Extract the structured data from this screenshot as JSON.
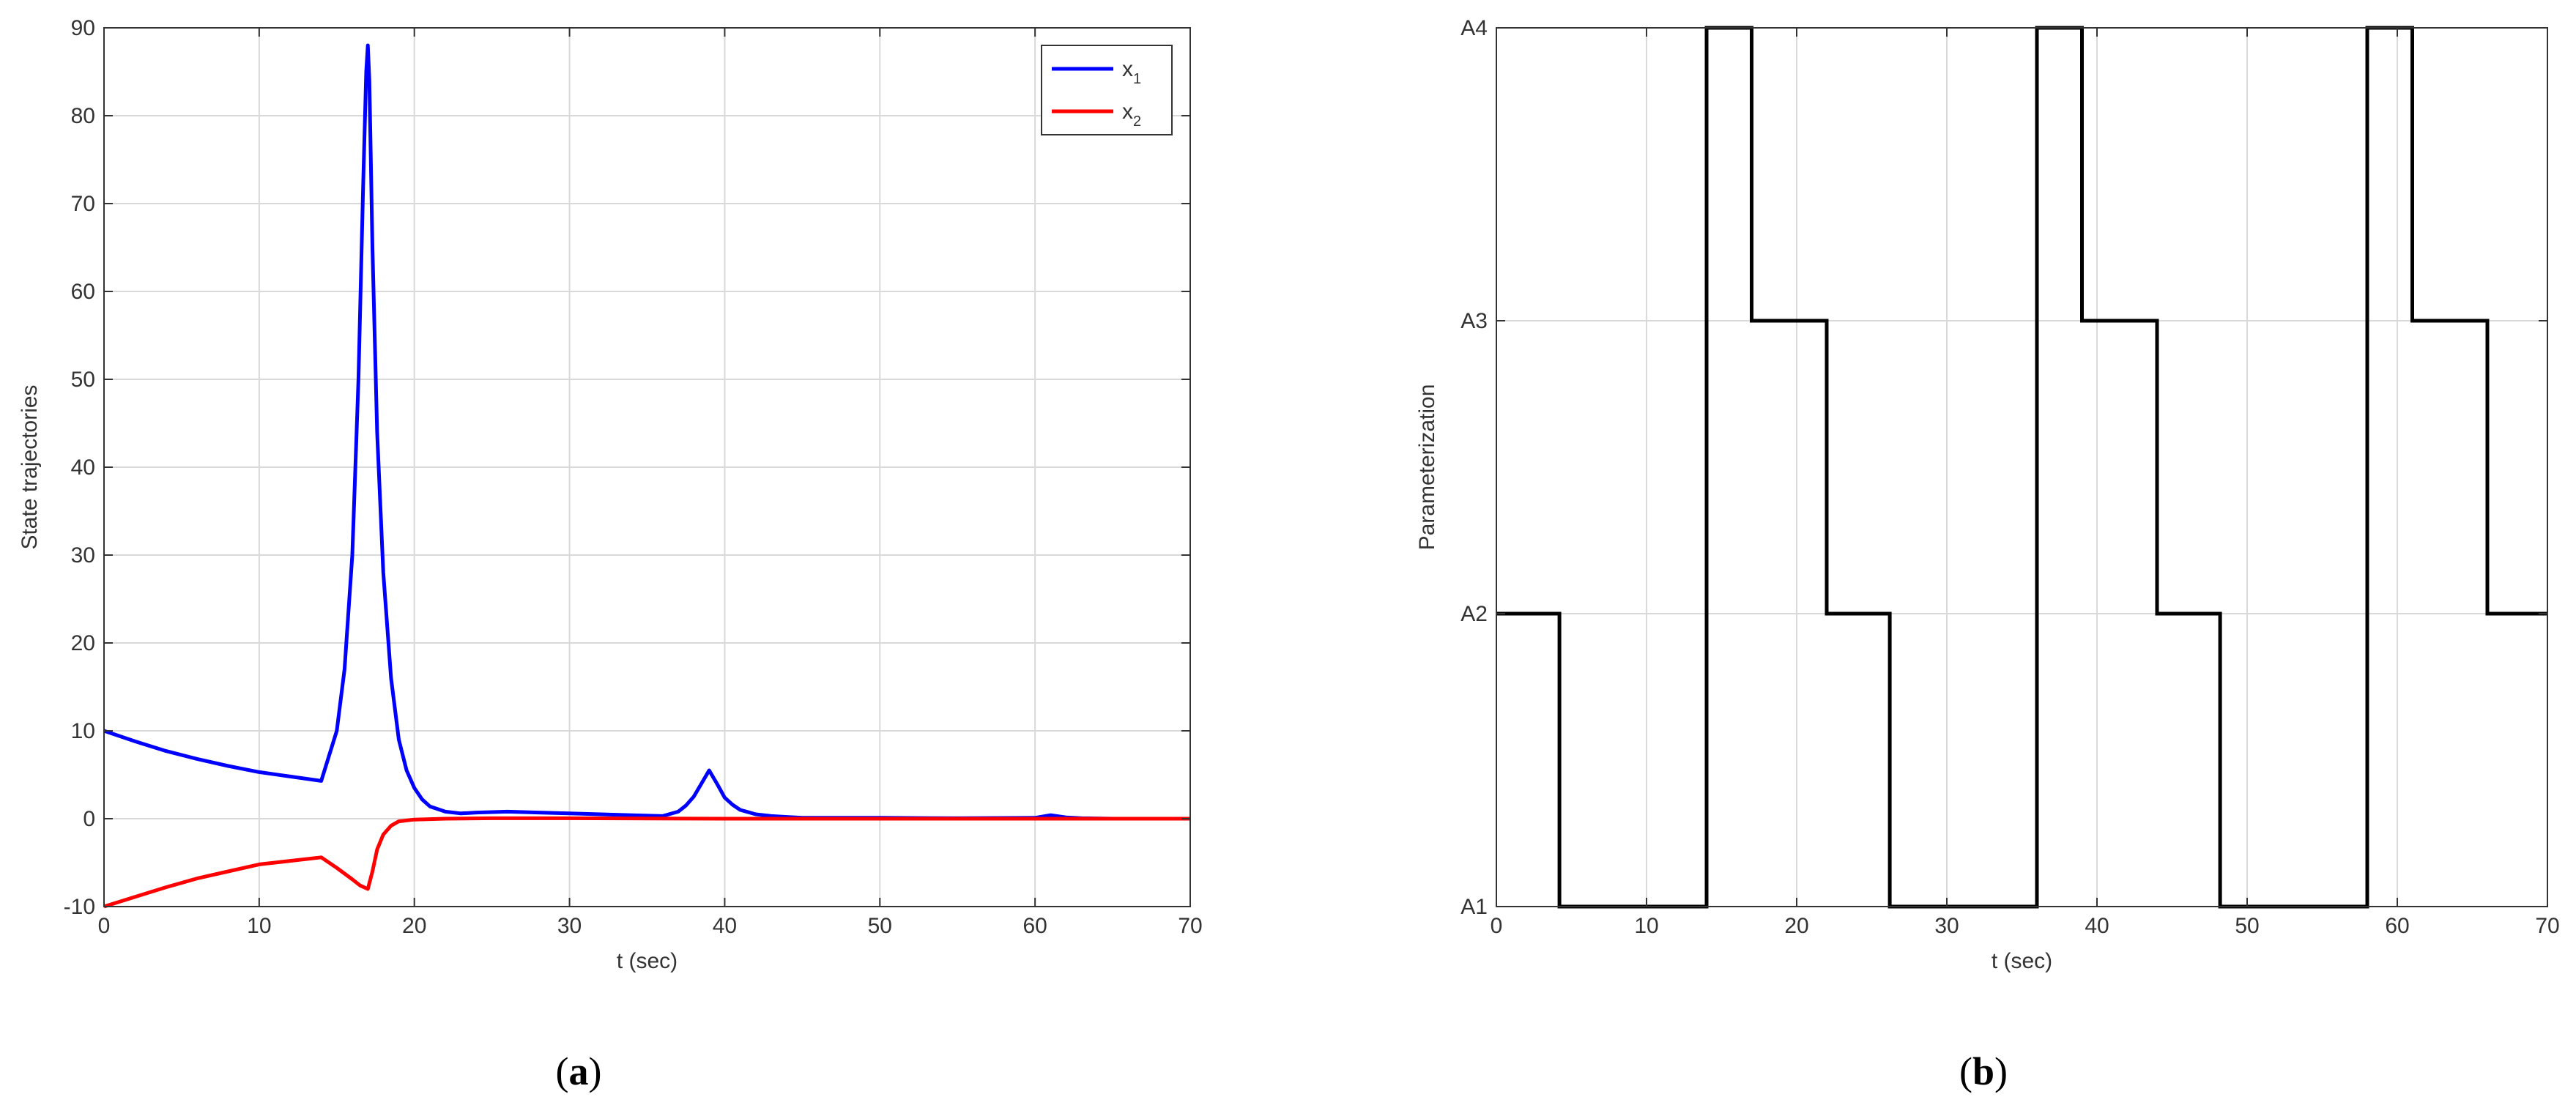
{
  "chart_data": [
    {
      "type": "line",
      "panel_label": "a",
      "xlabel": "t (sec)",
      "ylabel": "State trajectories",
      "xlim": [
        0,
        70
      ],
      "ylim": [
        -10,
        90
      ],
      "xticks": [
        0,
        10,
        20,
        30,
        40,
        50,
        60,
        70
      ],
      "yticks": [
        -10,
        0,
        10,
        20,
        30,
        40,
        50,
        60,
        70,
        80,
        90
      ],
      "grid": true,
      "legend_position": "top-right",
      "series": [
        {
          "name": "x",
          "name_subscript": "1",
          "color": "#0000ff",
          "x": [
            0,
            2,
            4,
            6,
            8,
            10,
            12,
            14,
            15,
            15.5,
            16,
            16.4,
            16.7,
            16.9,
            17,
            17.1,
            17.3,
            17.6,
            18,
            18.5,
            19,
            19.5,
            20,
            20.5,
            21,
            22,
            23,
            24,
            26,
            28,
            30,
            32,
            34,
            36,
            37,
            37.5,
            38,
            38.5,
            39,
            39.5,
            40,
            40.5,
            41,
            42,
            43,
            44,
            45,
            50,
            55,
            60,
            61,
            62,
            63,
            65,
            70
          ],
          "y": [
            10,
            8.8,
            7.7,
            6.8,
            6,
            5.3,
            4.8,
            4.3,
            10,
            17,
            30,
            50,
            72,
            85,
            88,
            84,
            65,
            44,
            28,
            16,
            9,
            5.5,
            3.5,
            2.2,
            1.4,
            0.8,
            0.6,
            0.7,
            0.8,
            0.7,
            0.6,
            0.5,
            0.4,
            0.3,
            0.8,
            1.5,
            2.5,
            4,
            5.5,
            4,
            2.4,
            1.6,
            1,
            0.5,
            0.3,
            0.2,
            0.1,
            0.1,
            0.05,
            0.1,
            0.4,
            0.15,
            0.05,
            0,
            0
          ]
        },
        {
          "name": "x",
          "name_subscript": "2",
          "color": "#ff0000",
          "x": [
            0,
            2,
            4,
            6,
            8,
            10,
            12,
            14,
            15,
            16,
            16.5,
            17,
            17.3,
            17.6,
            18,
            18.5,
            19,
            20,
            22,
            25,
            30,
            40,
            50,
            60,
            70
          ],
          "y": [
            -10,
            -8.9,
            -7.8,
            -6.8,
            -6,
            -5.2,
            -4.8,
            -4.4,
            -5.6,
            -6.9,
            -7.6,
            -8,
            -6,
            -3.5,
            -1.8,
            -0.8,
            -0.3,
            -0.1,
            0,
            0.05,
            0.05,
            0,
            0,
            0,
            0
          ]
        }
      ]
    },
    {
      "type": "line",
      "panel_label": "b",
      "xlabel": "t (sec)",
      "ylabel": "Parameterization",
      "xlim": [
        0,
        70
      ],
      "ylim": [
        0,
        3
      ],
      "xticks": [
        0,
        10,
        20,
        30,
        40,
        50,
        60,
        70
      ],
      "ytick_labels": [
        "A1",
        "A2",
        "A3",
        "A4"
      ],
      "ytick_values": [
        0,
        1,
        2,
        3
      ],
      "grid": true,
      "series": [
        {
          "color": "#000000",
          "step": true,
          "x": [
            0,
            4.2,
            14,
            17,
            22,
            26.2,
            36,
            39,
            44,
            48.2,
            58,
            61,
            66,
            70
          ],
          "y": [
            1,
            0,
            3,
            2,
            1,
            0,
            3,
            2,
            1,
            0,
            3,
            2,
            1,
            1
          ]
        }
      ]
    }
  ],
  "captions": {
    "a": "a",
    "b": "b"
  }
}
